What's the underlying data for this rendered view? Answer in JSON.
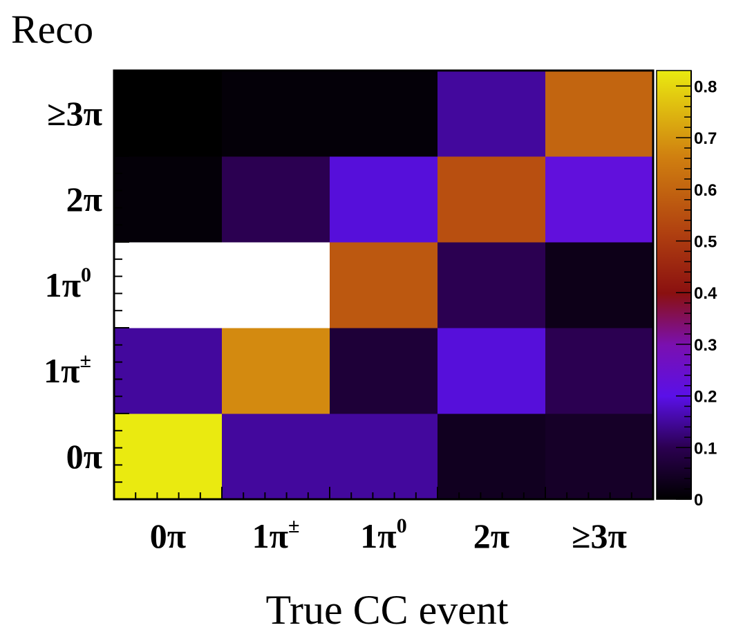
{
  "chart_data": {
    "type": "heatmap",
    "ylabel": "Reco",
    "xlabel": "True CC event",
    "x_categories": [
      {
        "base": "0π",
        "sup": ""
      },
      {
        "base": "1π",
        "sup": "±"
      },
      {
        "base": "1π",
        "sup": "0"
      },
      {
        "base": "2π",
        "sup": ""
      },
      {
        "base": "≥3π",
        "sup": ""
      }
    ],
    "y_categories": [
      {
        "base": "0π",
        "sup": ""
      },
      {
        "base": "1π",
        "sup": "±"
      },
      {
        "base": "1π",
        "sup": "0"
      },
      {
        "base": "2π",
        "sup": ""
      },
      {
        "base": "≥3π",
        "sup": ""
      }
    ],
    "z": [
      [
        0.83,
        0.15,
        0.15,
        0.04,
        0.05
      ],
      [
        0.15,
        0.68,
        0.07,
        0.19,
        0.1
      ],
      [
        null,
        null,
        0.57,
        0.1,
        0.03
      ],
      [
        0.01,
        0.1,
        0.19,
        0.55,
        0.22
      ],
      [
        0.0,
        0.01,
        0.01,
        0.15,
        0.6
      ]
    ],
    "colorbar": {
      "range": [
        0,
        0.83
      ],
      "ticks": [
        "0",
        "0.1",
        "0.2",
        "0.3",
        "0.4",
        "0.5",
        "0.6",
        "0.7",
        "0.8"
      ]
    }
  }
}
